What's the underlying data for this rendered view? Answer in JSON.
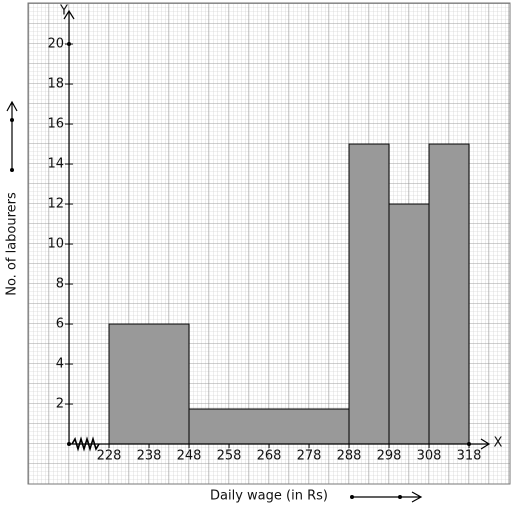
{
  "chart_data": {
    "type": "histogram",
    "x_name": "X",
    "y_name": "Y",
    "xlabel": "Daily wage (in Rs)",
    "ylabel": "No. of labourers",
    "bins": [
      228,
      248,
      288,
      298,
      308,
      318
    ],
    "counts": [
      6,
      1.75,
      15,
      12,
      15
    ],
    "color": "#999999",
    "xlim": [
      218,
      323
    ],
    "xticks": [
      228,
      238,
      248,
      258,
      268,
      278,
      288,
      298,
      308,
      318
    ],
    "ylim": [
      0,
      21.5
    ],
    "yticks": [
      2,
      4,
      6,
      8,
      10,
      12,
      14,
      16,
      18,
      20
    ],
    "grid": true
  }
}
